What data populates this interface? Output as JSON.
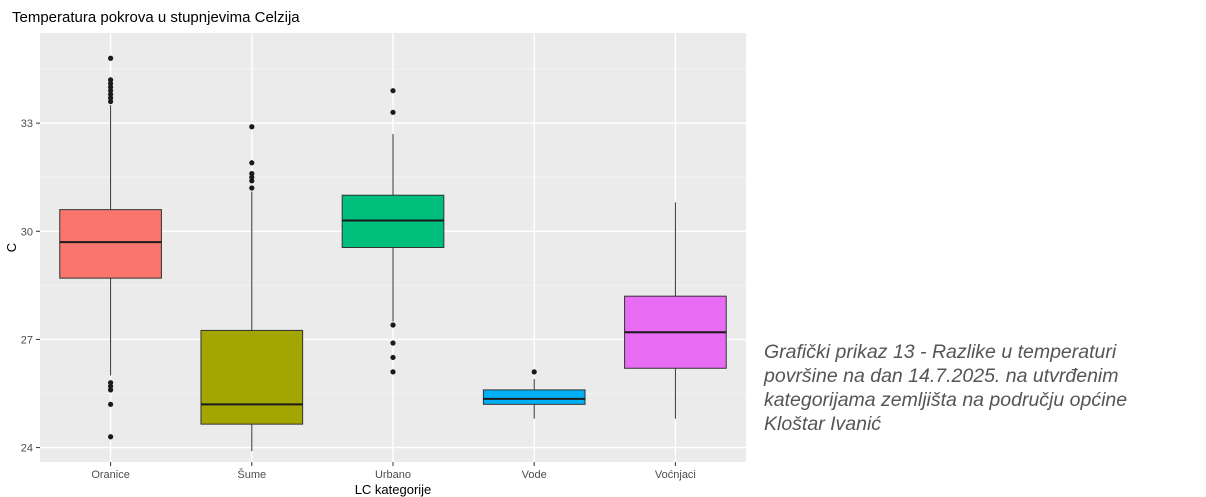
{
  "chart_data": {
    "type": "boxplot",
    "title": "Temperatura pokrova u stupnjevima Celzija",
    "xlabel": "LC kategorije",
    "ylabel": "C",
    "ylim": [
      23.6,
      35.5
    ],
    "yticks": [
      24,
      27,
      30,
      33
    ],
    "grid": true,
    "legend": "none",
    "categories": [
      "Oranice",
      "Šume",
      "Urbano",
      "Vode",
      "Voćnjaci"
    ],
    "boxes": [
      {
        "category": "Oranice",
        "color": "#F8766D",
        "whisker_low": 26.0,
        "q1": 28.7,
        "median": 29.7,
        "q3": 30.6,
        "whisker_high": 33.5,
        "outliers": [
          24.3,
          25.2,
          25.6,
          25.7,
          25.8,
          33.6,
          33.7,
          33.8,
          33.9,
          34.0,
          34.1,
          34.2,
          34.8
        ]
      },
      {
        "category": "Šume",
        "color": "#A3A500",
        "whisker_low": 23.9,
        "q1": 24.65,
        "median": 25.2,
        "q3": 27.25,
        "whisker_high": 31.1,
        "outliers": [
          31.2,
          31.4,
          31.5,
          31.6,
          31.9,
          32.9
        ]
      },
      {
        "category": "Urbano",
        "color": "#00BF7D",
        "whisker_low": 27.5,
        "q1": 29.55,
        "median": 30.3,
        "q3": 31.0,
        "whisker_high": 32.7,
        "outliers": [
          26.1,
          26.5,
          26.9,
          27.4,
          33.3,
          33.9
        ]
      },
      {
        "category": "Vode",
        "color": "#00B0F6",
        "whisker_low": 24.8,
        "q1": 25.2,
        "median": 25.35,
        "q3": 25.6,
        "whisker_high": 25.9,
        "outliers": [
          26.1
        ]
      },
      {
        "category": "Voćnjaci",
        "color": "#E76BF3",
        "whisker_low": 24.8,
        "q1": 26.2,
        "median": 27.2,
        "q3": 28.2,
        "whisker_high": 30.8,
        "outliers": []
      }
    ]
  },
  "caption": {
    "lines": [
      "Grafički prikaz 13 - Razlike u temperaturi",
      "površine na dan 14.7.2025. na utvrđenim",
      "kategorijama zemljišta na području općine",
      "Kloštar Ivanić"
    ]
  }
}
